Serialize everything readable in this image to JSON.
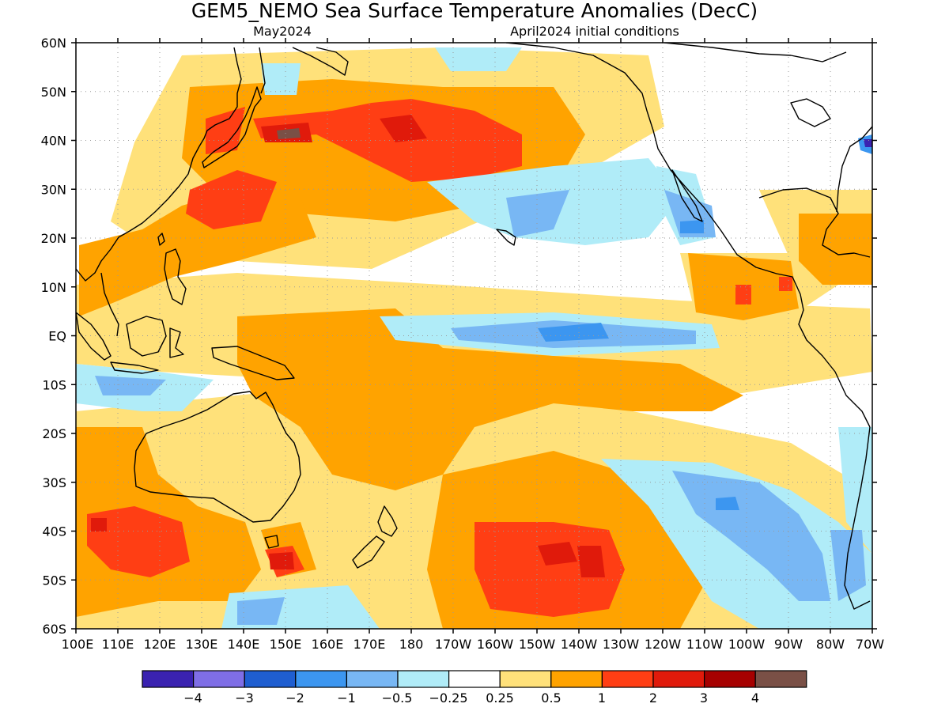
{
  "title": "GEM5_NEMO Sea Surface Temperature Anomalies (DecC)",
  "subtitle_left": "May2024",
  "subtitle_right": "April2024 initial conditions",
  "lat_labels": [
    "60N",
    "50N",
    "40N",
    "30N",
    "20N",
    "10N",
    "EQ",
    "10S",
    "20S",
    "30S",
    "40S",
    "50S",
    "60S"
  ],
  "lon_labels": [
    "100E",
    "110E",
    "120E",
    "130E",
    "140E",
    "150E",
    "160E",
    "170E",
    "180",
    "170W",
    "160W",
    "150W",
    "140W",
    "130W",
    "120W",
    "110W",
    "100W",
    "90W",
    "80W",
    "70W"
  ],
  "colorbar": {
    "colors": [
      "#3a22b0",
      "#7f6ee6",
      "#1f5ed0",
      "#3c96f0",
      "#78b7f4",
      "#b0ecf8",
      "#ffffff",
      "#ffe17a",
      "#ffa300",
      "#ff3e14",
      "#e01a0b",
      "#a60000",
      "#7a5046"
    ],
    "tick_labels": [
      "−4",
      "−3",
      "−2",
      "−1",
      "−0.5",
      "−0.25",
      "0.25",
      "0.5",
      "1",
      "2",
      "3",
      "4"
    ]
  },
  "colors": {
    "ocean": "#ffffff",
    "land_outline": "#000000",
    "grid": "#9a9a9a"
  }
}
